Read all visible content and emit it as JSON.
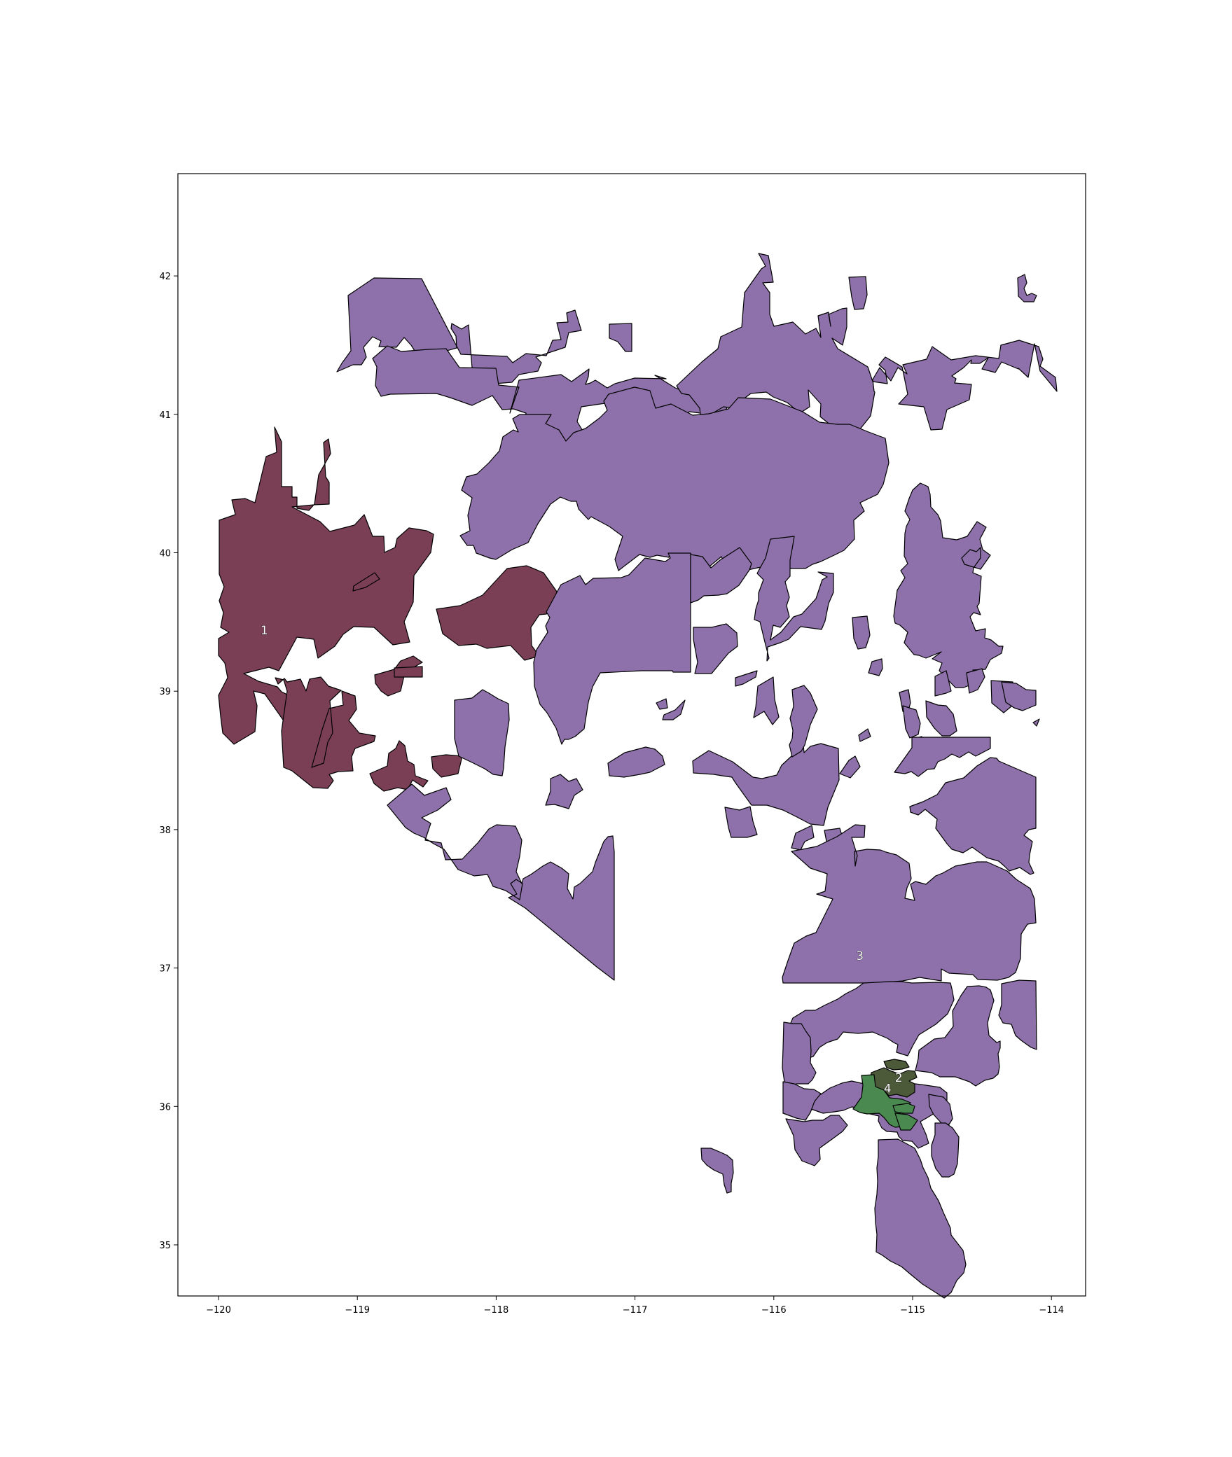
{
  "map": {
    "x_ticks": [
      "−120",
      "−119",
      "−118",
      "−117",
      "−116",
      "−115",
      "−114"
    ],
    "y_ticks": [
      "35",
      "36",
      "37",
      "38",
      "39",
      "40",
      "41",
      "42"
    ],
    "colors": {
      "district_1": "#7b3f55",
      "district_2": "#4c5a3a",
      "district_3": "#8e71aa",
      "district_4": "#4a8a50"
    },
    "districts": [
      {
        "id": "1",
        "label": "1",
        "lon": -119.67,
        "lat": 39.44
      },
      {
        "id": "2",
        "label": "2",
        "lon": -115.1,
        "lat": 36.21
      },
      {
        "id": "3",
        "label": "3",
        "lon": -115.38,
        "lat": 37.09
      },
      {
        "id": "4",
        "label": "4",
        "lon": -115.18,
        "lat": 36.13
      }
    ],
    "lon_range": [
      -120.3,
      -113.75
    ],
    "lat_range": [
      34.65,
      42.75
    ]
  }
}
